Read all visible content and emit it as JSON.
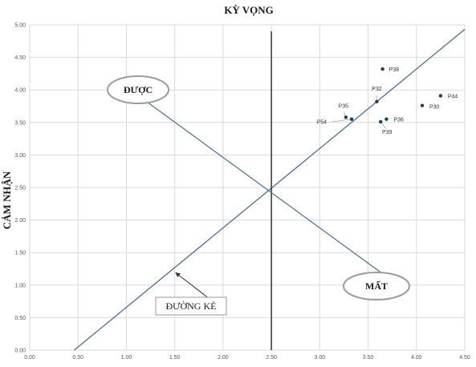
{
  "chart_data": {
    "type": "scatter",
    "title": "KỲ VỌNG",
    "ylabel": "CẢM NHẬN",
    "xlabel": "",
    "xlim": [
      0,
      4.5
    ],
    "ylim": [
      0,
      5
    ],
    "x_ticks": [
      "0.00",
      "0.50",
      "1.00",
      "1.50",
      "2.00",
      "2.50",
      "3.00",
      "3.50",
      "4.00",
      "4.50"
    ],
    "y_ticks": [
      "0.00",
      "0.50",
      "1.00",
      "1.50",
      "2.00",
      "2.50",
      "3.00",
      "3.50",
      "4.00",
      "4.50",
      "5.00"
    ],
    "grid": true,
    "points": [
      {
        "label": "P38",
        "x": 3.65,
        "y": 4.32
      },
      {
        "label": "P44",
        "x": 4.25,
        "y": 3.91
      },
      {
        "label": "P32",
        "x": 3.59,
        "y": 3.82
      },
      {
        "label": "P30",
        "x": 4.06,
        "y": 3.76
      },
      {
        "label": "P35",
        "x": 3.27,
        "y": 3.58
      },
      {
        "label": "P36",
        "x": 3.69,
        "y": 3.55
      },
      {
        "label": "P54",
        "x": 3.33,
        "y": 3.55
      },
      {
        "label": "P39",
        "x": 3.63,
        "y": 3.51
      }
    ],
    "lines": {
      "diagonal": [
        [
          0.46,
          0
        ],
        [
          4.5,
          4.93
        ]
      ],
      "vertical_x": 2.5,
      "vertical_y_range": [
        0,
        4.9
      ],
      "cross_arrow_from": [
        1.2,
        3.83
      ],
      "cross_arrow_to": [
        3.71,
        1.11
      ],
      "pointer_from": [
        1.85,
        0.8
      ],
      "pointer_to": [
        1.51,
        1.19
      ]
    },
    "annotations": {
      "gain": "ĐƯỢC",
      "loss": "MẤT",
      "line_label": "ĐƯỜNG KẺ"
    }
  },
  "colors": {
    "line": "#4e6e8e",
    "point": "#1f3c5c",
    "grid": "#d9d9d9",
    "vertical": "#333333"
  }
}
